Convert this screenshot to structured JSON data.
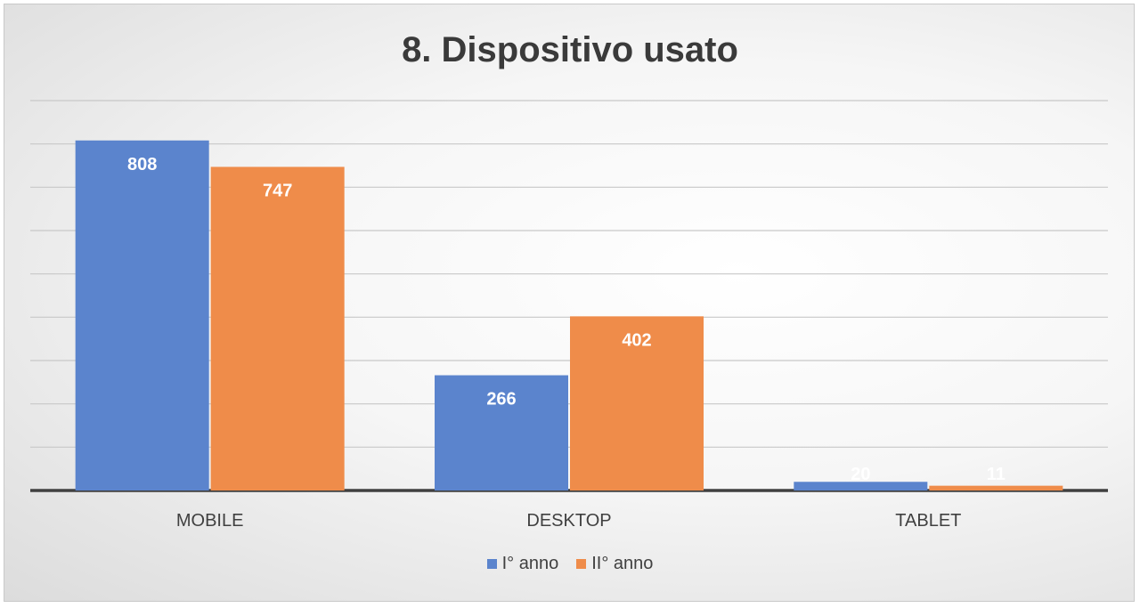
{
  "chart_data": {
    "type": "bar",
    "title": "8. Dispositivo usato",
    "categories": [
      "MOBILE",
      "DESKTOP",
      "TABLET"
    ],
    "series": [
      {
        "name": "I° anno",
        "values": [
          808,
          266,
          20
        ],
        "color": "#5b84cd"
      },
      {
        "name": "II° anno",
        "values": [
          747,
          402,
          11
        ],
        "color": "#ef8c4a"
      }
    ],
    "ylim": [
      0,
      900
    ],
    "grid": true,
    "legend": "bottom",
    "data_labels": true
  }
}
